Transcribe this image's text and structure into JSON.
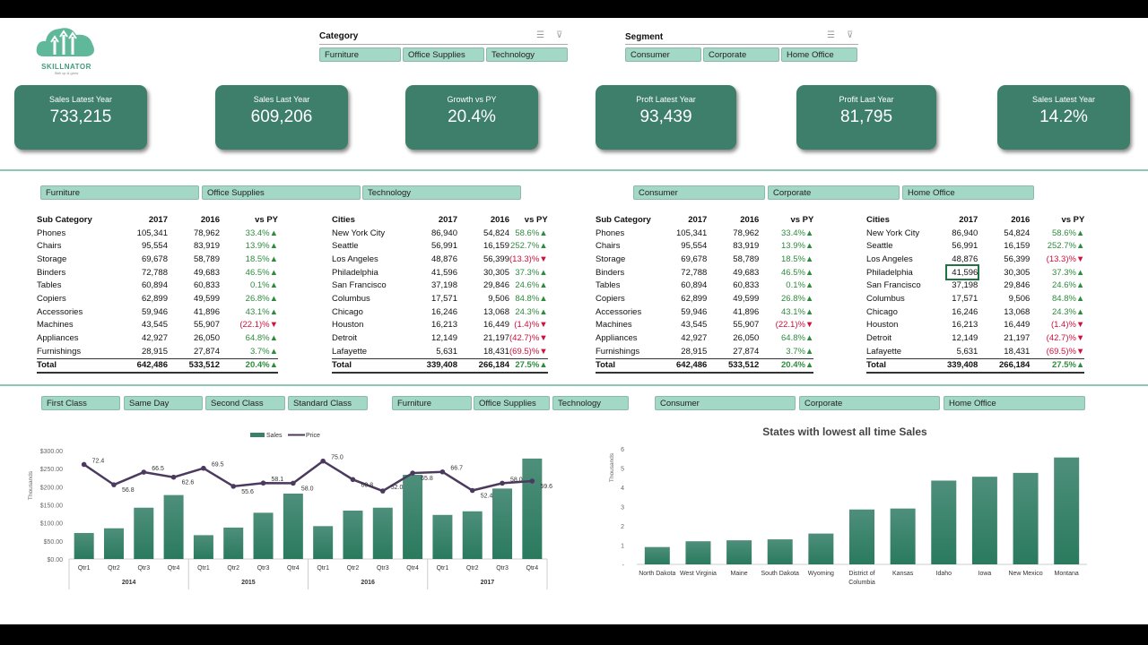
{
  "brand": {
    "name": "SKILLNATOR",
    "tagline": "Skill up & grow"
  },
  "slicers_top": [
    {
      "title": "Category",
      "items": [
        "Furniture",
        "Office Supplies",
        "Technology"
      ]
    },
    {
      "title": "Segment",
      "items": [
        "Consumer",
        "Corporate",
        "Home Office"
      ]
    }
  ],
  "kpis": [
    {
      "label": "Sales Latest Year",
      "value": "733,215"
    },
    {
      "label": "Sales Last Year",
      "value": "609,206"
    },
    {
      "label": "Growth vs PY",
      "value": "20.4%"
    },
    {
      "label": "Proft Latest Year",
      "value": "93,439"
    },
    {
      "label": "Profit Last Year",
      "value": "81,795"
    },
    {
      "label": "Sales Latest Year",
      "value": "14.2%"
    }
  ],
  "mid_slicers": {
    "category": [
      "Furniture",
      "Office Supplies",
      "Technology"
    ],
    "segment": [
      "Consumer",
      "Corporate",
      "Home Office"
    ]
  },
  "bottom_slicers": {
    "ship_mode": [
      "First Class",
      "Same Day",
      "Second Class",
      "Standard Class"
    ],
    "category": [
      "Furniture",
      "Office Supplies",
      "Technology"
    ],
    "segment": [
      "Consumer",
      "Corporate",
      "Home Office"
    ]
  },
  "colors": {
    "accent": "#3d7f6b",
    "slicer": "#a3d7c6",
    "up": "#2e8b3e",
    "down": "#d0103a",
    "line": "#4b3a5e"
  },
  "subcat_table": {
    "headers": [
      "Sub Category",
      "2017",
      "2016",
      "vs PY"
    ],
    "rows": [
      [
        "Phones",
        "105,341",
        "78,962",
        "33.4%▲"
      ],
      [
        "Chairs",
        "95,554",
        "83,919",
        "13.9%▲"
      ],
      [
        "Storage",
        "69,678",
        "58,789",
        "18.5%▲"
      ],
      [
        "Binders",
        "72,788",
        "49,683",
        "46.5%▲"
      ],
      [
        "Tables",
        "60,894",
        "60,833",
        "0.1%▲"
      ],
      [
        "Copiers",
        "62,899",
        "49,599",
        "26.8%▲"
      ],
      [
        "Accessories",
        "59,946",
        "41,896",
        "43.1%▲"
      ],
      [
        "Machines",
        "43,545",
        "55,907",
        "(22.1)%▼"
      ],
      [
        "Appliances",
        "42,927",
        "26,050",
        "64.8%▲"
      ],
      [
        "Furnishings",
        "28,915",
        "27,874",
        "3.7%▲"
      ]
    ],
    "total": [
      "Total",
      "642,486",
      "533,512",
      "20.4%▲"
    ]
  },
  "city_table": {
    "headers": [
      "Cities",
      "2017",
      "2016",
      "vs PY"
    ],
    "rows": [
      [
        "New York City",
        "86,940",
        "54,824",
        "58.6%▲"
      ],
      [
        "Seattle",
        "56,991",
        "16,159",
        "252.7%▲"
      ],
      [
        "Los Angeles",
        "48,876",
        "56,399",
        "(13.3)%▼"
      ],
      [
        "Philadelphia",
        "41,596",
        "30,305",
        "37.3%▲"
      ],
      [
        "San Francisco",
        "37,198",
        "29,846",
        "24.6%▲"
      ],
      [
        "Columbus",
        "17,571",
        "9,506",
        "84.8%▲"
      ],
      [
        "Chicago",
        "16,246",
        "13,068",
        "24.3%▲"
      ],
      [
        "Houston",
        "16,213",
        "16,449",
        "(1.4)%▼"
      ],
      [
        "Detroit",
        "12,149",
        "21,197",
        "(42.7)%▼"
      ],
      [
        "Lafayette",
        "5,631",
        "18,431",
        "(69.5)%▼"
      ]
    ],
    "total": [
      "Total",
      "339,408",
      "266,184",
      "27.5%▲"
    ]
  },
  "chart_data": [
    {
      "type": "bar+line",
      "legend": [
        "Sales",
        "Price"
      ],
      "legend_position": "top",
      "ylabel": "Thousands",
      "ylim": [
        0,
        300
      ],
      "yticks": [
        "$0.00",
        "$50.00",
        "$100.00",
        "$150.00",
        "$200.00",
        "$250.00",
        "$300.00"
      ],
      "years": [
        "2014",
        "2015",
        "2016",
        "2017"
      ],
      "quarters": [
        "Qtr1",
        "Qtr2",
        "Qtr3",
        "Qtr4"
      ],
      "series": [
        {
          "name": "Sales",
          "values": [
            72,
            85,
            142,
            177,
            66,
            87,
            128,
            181,
            91,
            134,
            142,
            233,
            122,
            132,
            195,
            278
          ]
        },
        {
          "name": "Price",
          "values": [
            72.4,
            56.8,
            66.5,
            62.6,
            69.5,
            55.6,
            58.1,
            58.0,
            75.0,
            60.8,
            52.0,
            65.8,
            66.7,
            52.4,
            58.0,
            59.6
          ],
          "labels": [
            "72.4",
            "56.8",
            "66.5",
            "62.6",
            "69.5",
            "55.6",
            "58.1",
            "58.0",
            "75.0",
            "60.8",
            "52.0",
            "65.8",
            "66.7",
            "52.4",
            "58.0",
            "59.6"
          ]
        }
      ]
    },
    {
      "type": "bar",
      "title": "States with lowest all time Sales",
      "ylabel": "Thousands",
      "ylim": [
        0,
        6
      ],
      "yticks": [
        "-",
        "1",
        "2",
        "3",
        "4",
        "5",
        "6"
      ],
      "categories": [
        "North Dakota",
        "West Virginia",
        "Maine",
        "South Dakota",
        "Wyoming",
        "District of Columbia",
        "Kansas",
        "Idaho",
        "Iowa",
        "New Mexico",
        "Montana"
      ],
      "values": [
        0.9,
        1.2,
        1.25,
        1.3,
        1.6,
        2.85,
        2.9,
        4.35,
        4.55,
        4.75,
        5.55
      ]
    }
  ]
}
